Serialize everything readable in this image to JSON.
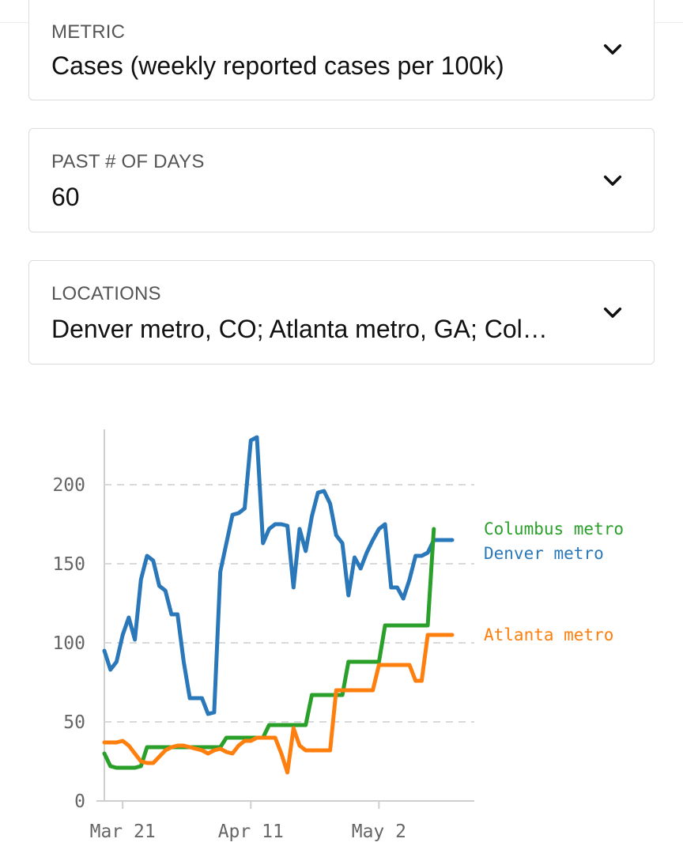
{
  "filters": {
    "metric": {
      "label": "METRIC",
      "value": "Cases (weekly reported cases per 100k)"
    },
    "days": {
      "label": "PAST # OF DAYS",
      "value": "60"
    },
    "locations": {
      "label": "LOCATIONS",
      "value": "Denver metro, CO; Atlanta metro, GA; Col…"
    }
  },
  "icons": {
    "dropdown": "chevron-down-icon"
  },
  "chart_data": {
    "type": "line",
    "title": "",
    "xlabel": "",
    "ylabel": "",
    "xlim": [
      0,
      57
    ],
    "ylim": [
      0,
      230
    ],
    "yticks": [
      0,
      50,
      100,
      150,
      200
    ],
    "ytick_labels": [
      "0",
      "50",
      "100",
      "150",
      "200"
    ],
    "xticks": [
      3,
      24,
      45
    ],
    "xtick_labels": [
      "Mar 21",
      "Apr 11",
      "May 2"
    ],
    "grid": "horizontal-dashed",
    "legend": "line-end-labels",
    "series": [
      {
        "name": "Denver metro",
        "color": "#2a78b9",
        "x": [
          0,
          1,
          2,
          3,
          4,
          5,
          6,
          7,
          8,
          9,
          10,
          11,
          12,
          13,
          14,
          15,
          16,
          17,
          18,
          19,
          20,
          21,
          22,
          23,
          24,
          25,
          26,
          27,
          28,
          29,
          30,
          31,
          32,
          33,
          34,
          35,
          36,
          37,
          38,
          39,
          40,
          41,
          42,
          43,
          44,
          45,
          46,
          47,
          48,
          49,
          50,
          51,
          52,
          53,
          54,
          55,
          56,
          57
        ],
        "values": [
          95,
          83,
          88,
          105,
          116,
          102,
          140,
          155,
          152,
          136,
          133,
          118,
          118,
          88,
          65,
          65,
          65,
          55,
          56,
          145,
          163,
          181,
          182,
          185,
          228,
          230,
          163,
          172,
          175,
          175,
          174,
          135,
          172,
          158,
          180,
          195,
          196,
          188,
          168,
          163,
          130,
          154,
          147,
          157,
          165,
          172,
          175,
          135,
          135,
          128,
          140,
          155,
          155,
          157,
          165,
          165,
          165,
          165
        ]
      },
      {
        "name": "Columbus metro",
        "color": "#2aa02b",
        "x": [
          0,
          1,
          2,
          3,
          4,
          5,
          6,
          7,
          8,
          9,
          10,
          11,
          12,
          13,
          14,
          15,
          16,
          17,
          18,
          19,
          20,
          21,
          22,
          23,
          24,
          25,
          26,
          27,
          28,
          29,
          30,
          31,
          32,
          33,
          34,
          35,
          36,
          37,
          38,
          39,
          40,
          41,
          42,
          43,
          44,
          45,
          46,
          47,
          48,
          49,
          50,
          51,
          52,
          53,
          54
        ],
        "values": [
          30,
          22,
          21,
          21,
          21,
          21,
          22,
          34,
          34,
          34,
          34,
          34,
          34,
          34,
          34,
          34,
          34,
          34,
          34,
          34,
          40,
          40,
          40,
          40,
          40,
          40,
          40,
          48,
          48,
          48,
          48,
          48,
          48,
          48,
          67,
          67,
          67,
          67,
          67,
          67,
          88,
          88,
          88,
          88,
          88,
          88,
          111,
          111,
          111,
          111,
          111,
          111,
          111,
          111,
          172
        ]
      },
      {
        "name": "Atlanta metro",
        "color": "#ff7f0e",
        "x": [
          0,
          1,
          2,
          3,
          4,
          5,
          6,
          7,
          8,
          9,
          10,
          11,
          12,
          13,
          14,
          15,
          16,
          17,
          18,
          19,
          20,
          21,
          22,
          23,
          24,
          25,
          26,
          27,
          28,
          29,
          30,
          31,
          32,
          33,
          34,
          35,
          36,
          37,
          38,
          39,
          40,
          41,
          42,
          43,
          44,
          45,
          46,
          47,
          48,
          49,
          50,
          51,
          52,
          53,
          54,
          55,
          56,
          57
        ],
        "values": [
          37,
          37,
          37,
          38,
          35,
          30,
          25,
          24,
          24,
          28,
          32,
          34,
          35,
          35,
          34,
          33,
          32,
          30,
          32,
          33,
          31,
          30,
          35,
          38,
          38,
          40,
          40,
          40,
          40,
          30,
          18,
          46,
          35,
          32,
          32,
          32,
          32,
          32,
          70,
          70,
          70,
          70,
          70,
          70,
          70,
          86,
          86,
          86,
          86,
          86,
          86,
          76,
          76,
          105,
          105,
          105,
          105,
          105
        ]
      }
    ]
  }
}
